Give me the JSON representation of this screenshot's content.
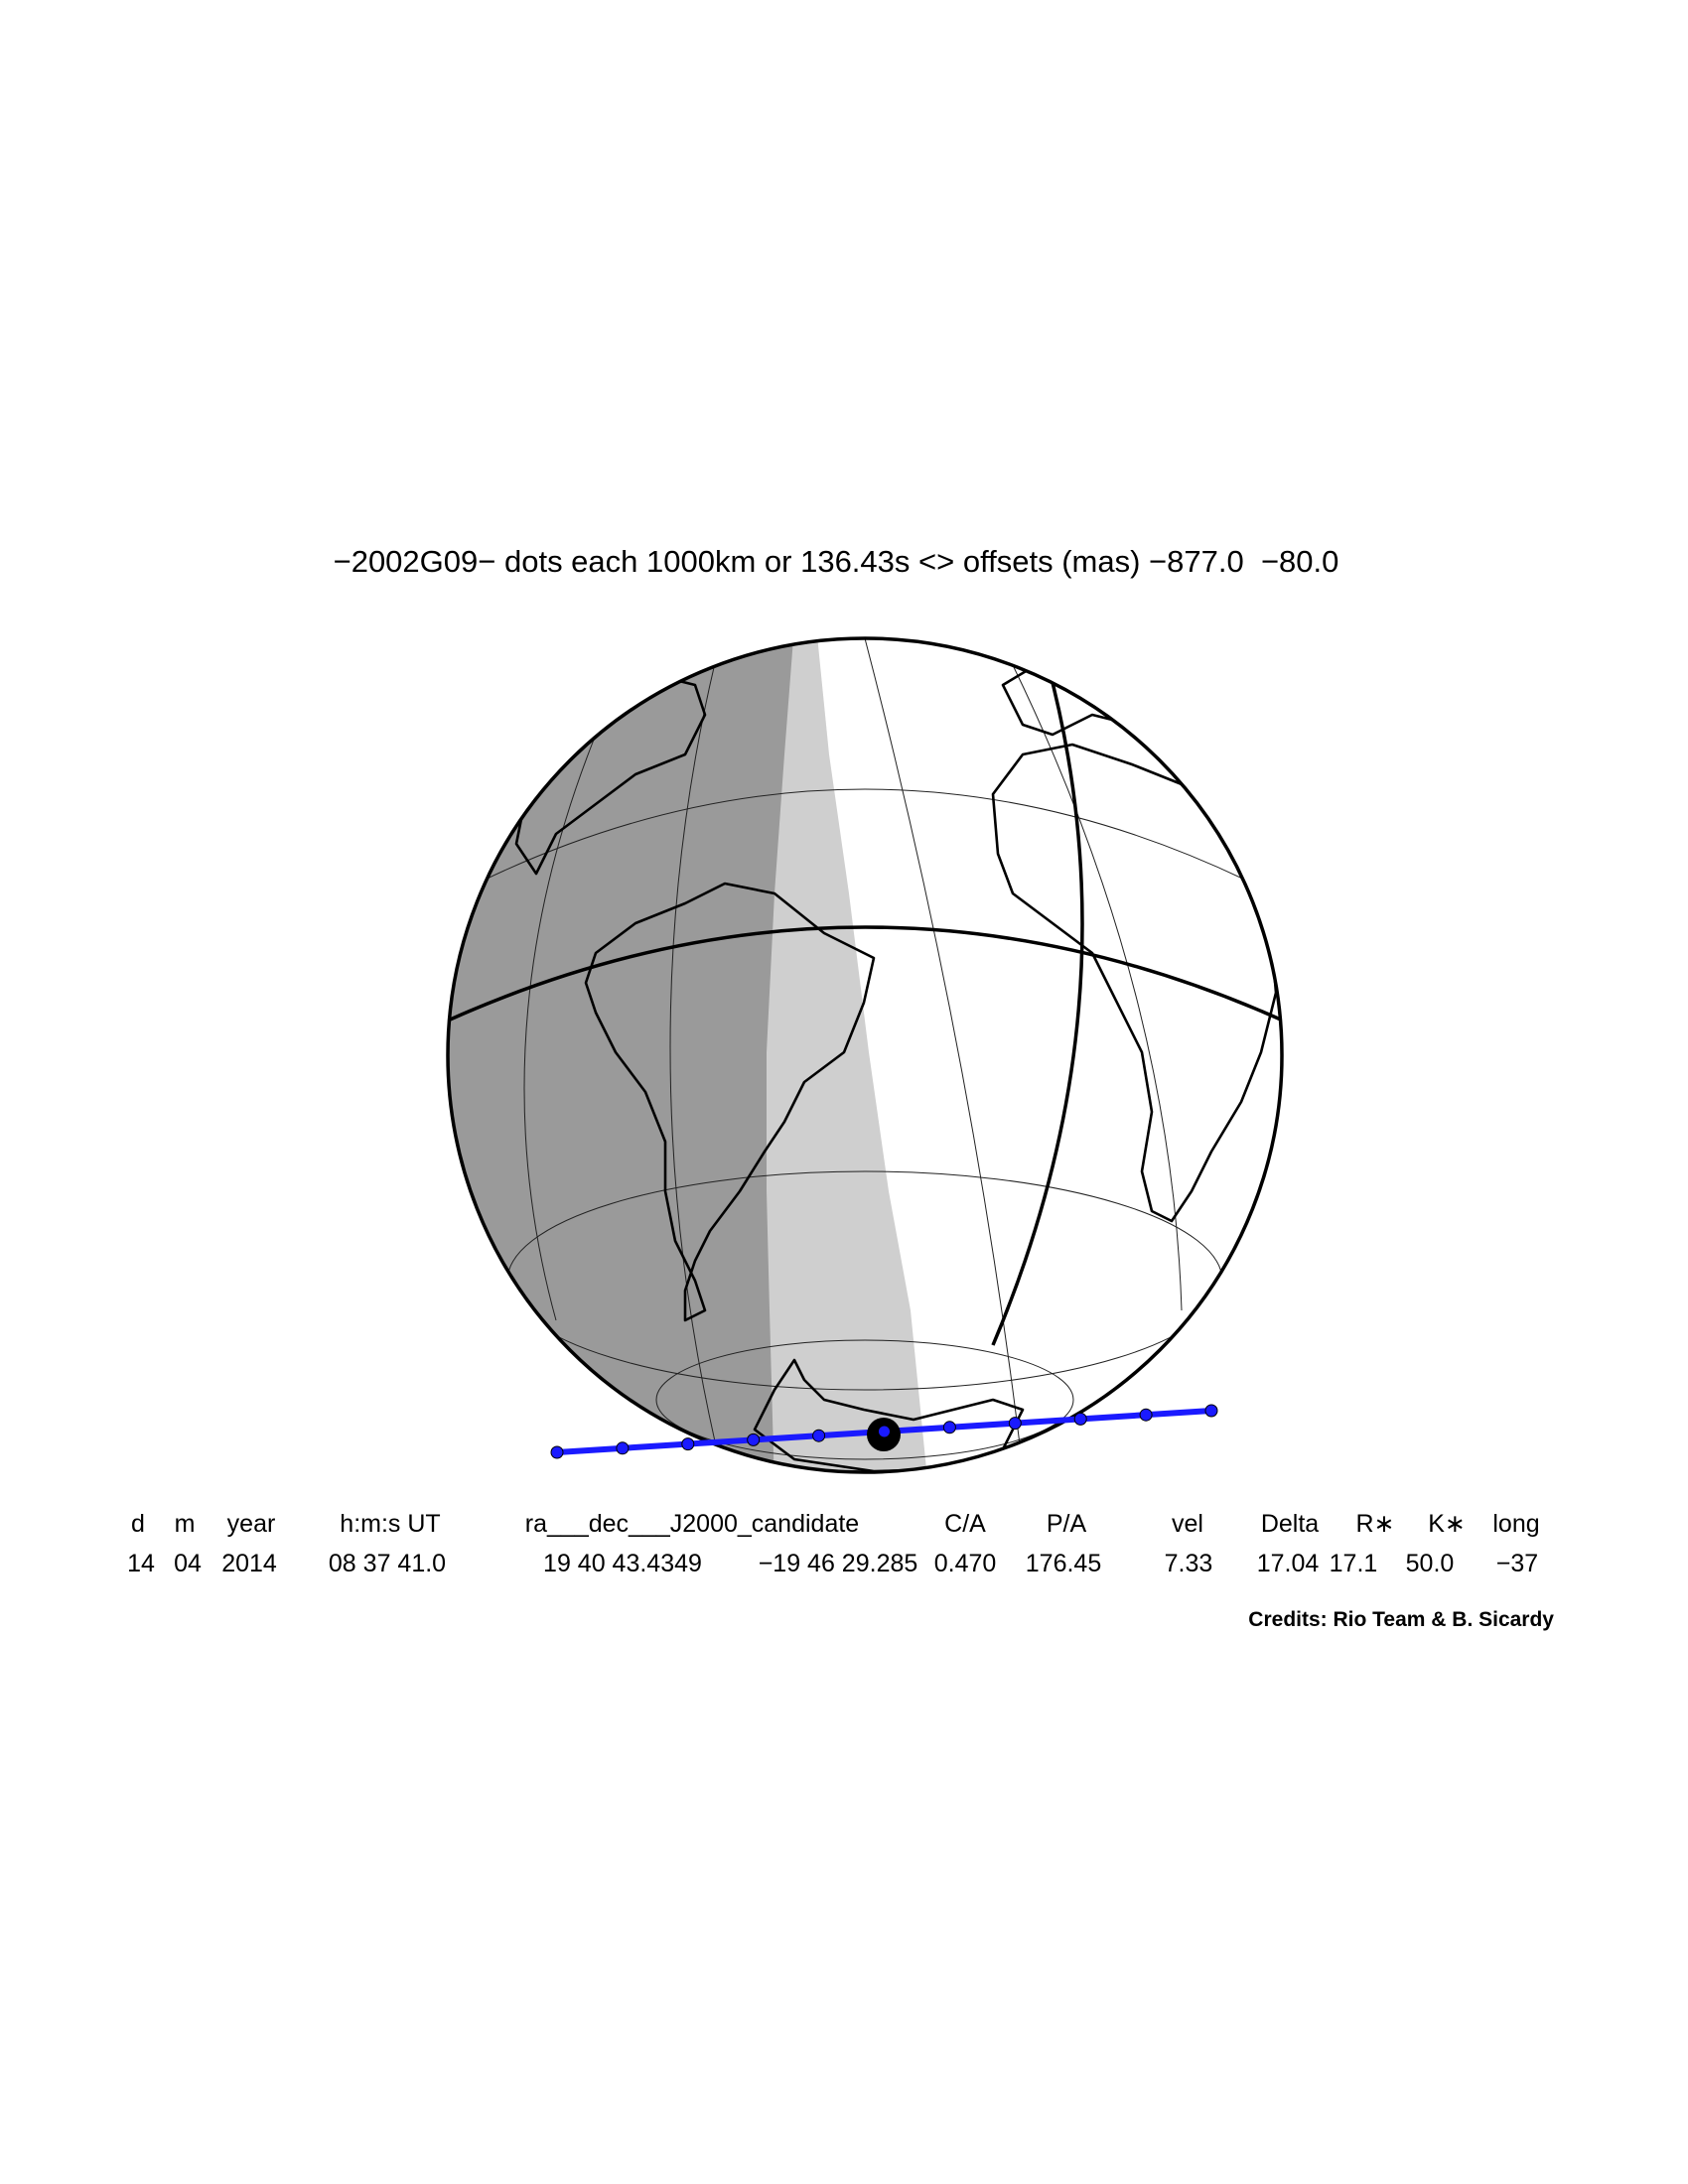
{
  "title": "−2002G09− dots each 1000km or 136.43s <> offsets (mas) −877.0  −80.0",
  "table": {
    "header": [
      "d",
      "m",
      "year",
      "h:m:s UT",
      "ra___dec___J2000_candidate",
      "C/A",
      "P/A",
      "vel",
      "Delta",
      "R∗",
      "K∗",
      "long"
    ],
    "rows": [
      [
        "14",
        "04",
        "2014",
        "08 37 41.0",
        "19 40 43.4349",
        "−19 46 29.285",
        "0.470",
        "176.45",
        "7.33",
        "17.04",
        "17.1",
        "50.0",
        "−37"
      ]
    ]
  },
  "credits": "Credits: Rio Team & B. Sicardy"
}
